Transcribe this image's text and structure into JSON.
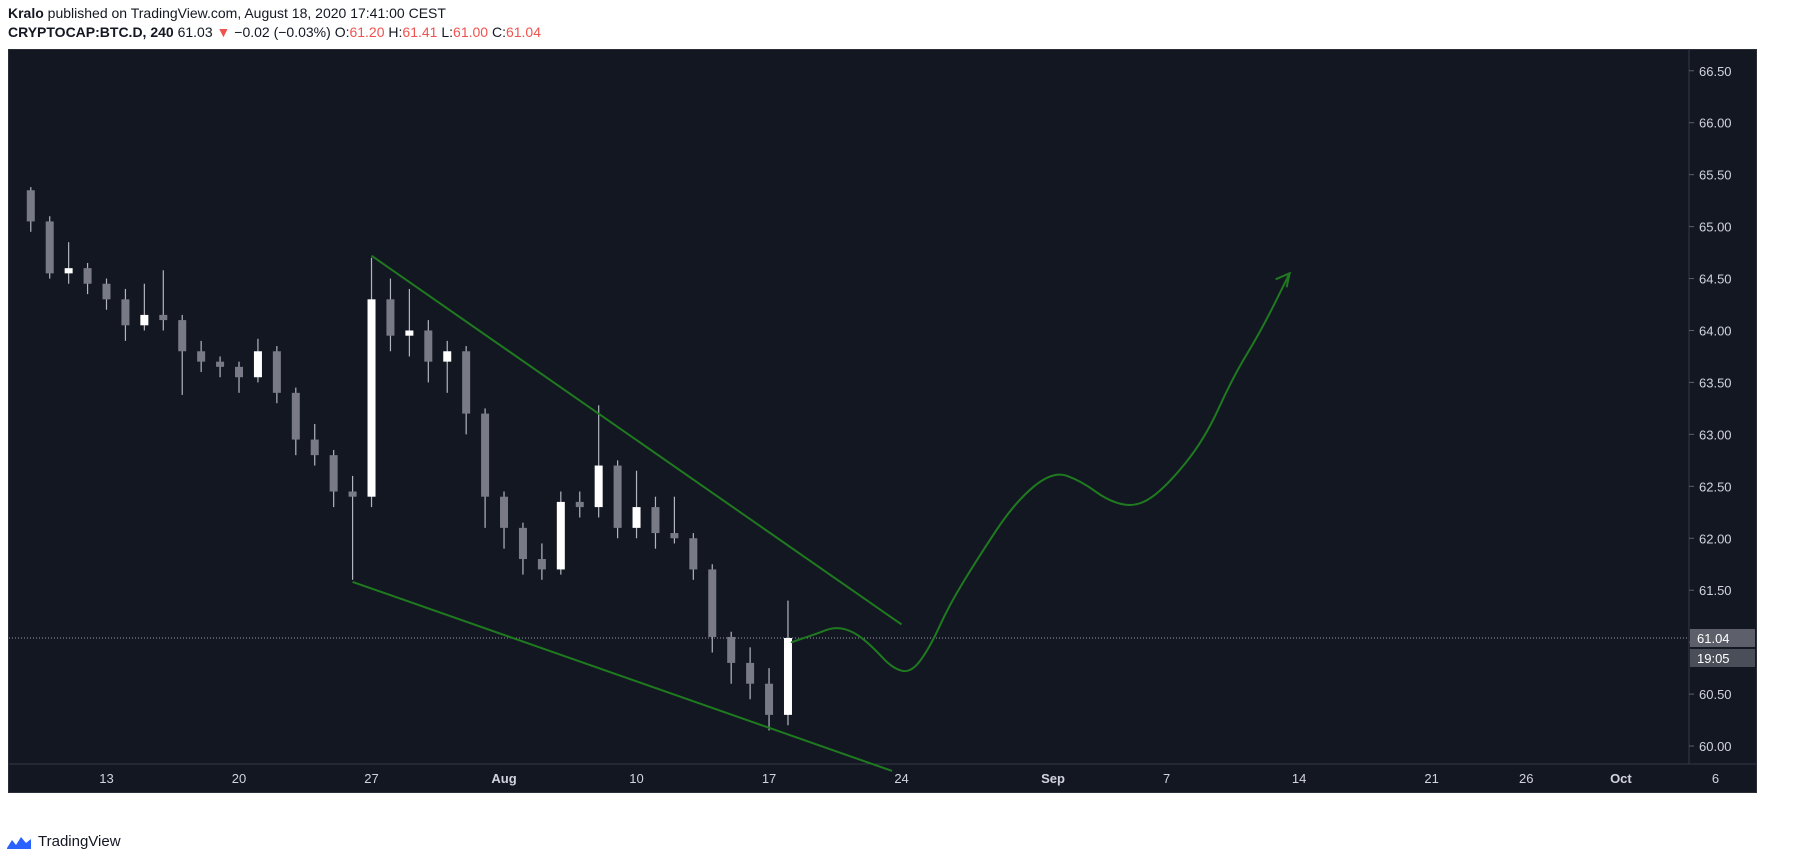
{
  "header": {
    "author": "Kralo",
    "published": " published on TradingView.com, August 18, 2020 17:41:00 CEST",
    "symbol": "CRYPTOCAP:BTC.D, 240",
    "last": "61.03",
    "change": "−0.02 (−0.03%)",
    "o_label": "O:",
    "o_value": "61.20",
    "h_label": "H:",
    "h_value": "61.41",
    "l_label": "L:",
    "l_value": "61.00",
    "c_label": "C:",
    "c_value": "61.04"
  },
  "footer": {
    "brand": "TradingView"
  },
  "colors": {
    "background": "#131722",
    "candle": "#ffffff",
    "wick": "#b2b5be",
    "trendline": "#1f7a1f",
    "down": "#ef5350",
    "axis_text": "#d1d4dc"
  },
  "chart_data": {
    "type": "candlestick",
    "y_ticks": [
      "66.50",
      "66.00",
      "65.50",
      "65.00",
      "64.50",
      "64.00",
      "63.50",
      "63.00",
      "62.50",
      "62.00",
      "61.50",
      "61.00",
      "60.50",
      "60.00"
    ],
    "x_ticks": [
      "13",
      "20",
      "27",
      "Aug",
      "10",
      "17",
      "24",
      "Sep",
      "7",
      "14",
      "21",
      "26",
      "Oct",
      "6"
    ],
    "last_price_label": "61.04",
    "countdown_label": "19:05",
    "last_price": 61.04,
    "series": [
      {
        "x": "Jul 9",
        "o": 65.35,
        "h": 65.38,
        "l": 64.95,
        "c": 65.05
      },
      {
        "x": "Jul 10",
        "o": 65.05,
        "h": 65.1,
        "l": 64.5,
        "c": 64.55
      },
      {
        "x": "Jul 11",
        "o": 64.55,
        "h": 64.85,
        "l": 64.45,
        "c": 64.6
      },
      {
        "x": "Jul 12",
        "o": 64.6,
        "h": 64.65,
        "l": 64.35,
        "c": 64.45
      },
      {
        "x": "Jul 13",
        "o": 64.45,
        "h": 64.5,
        "l": 64.2,
        "c": 64.3
      },
      {
        "x": "Jul 14",
        "o": 64.3,
        "h": 64.4,
        "l": 63.9,
        "c": 64.05
      },
      {
        "x": "Jul 15",
        "o": 64.05,
        "h": 64.45,
        "l": 64.0,
        "c": 64.15
      },
      {
        "x": "Jul 16",
        "o": 64.15,
        "h": 64.58,
        "l": 64.0,
        "c": 64.1
      },
      {
        "x": "Jul 17",
        "o": 64.1,
        "h": 64.15,
        "l": 63.38,
        "c": 63.8
      },
      {
        "x": "Jul 18",
        "o": 63.8,
        "h": 63.9,
        "l": 63.6,
        "c": 63.7
      },
      {
        "x": "Jul 19",
        "o": 63.7,
        "h": 63.75,
        "l": 63.55,
        "c": 63.65
      },
      {
        "x": "Jul 20",
        "o": 63.65,
        "h": 63.7,
        "l": 63.4,
        "c": 63.55
      },
      {
        "x": "Jul 21",
        "o": 63.55,
        "h": 63.92,
        "l": 63.5,
        "c": 63.8
      },
      {
        "x": "Jul 22",
        "o": 63.8,
        "h": 63.85,
        "l": 63.3,
        "c": 63.4
      },
      {
        "x": "Jul 23",
        "o": 63.4,
        "h": 63.45,
        "l": 62.8,
        "c": 62.95
      },
      {
        "x": "Jul 24",
        "o": 62.95,
        "h": 63.1,
        "l": 62.7,
        "c": 62.8
      },
      {
        "x": "Jul 25",
        "o": 62.8,
        "h": 62.85,
        "l": 62.3,
        "c": 62.45
      },
      {
        "x": "Jul 26",
        "o": 62.45,
        "h": 62.6,
        "l": 61.6,
        "c": 62.4
      },
      {
        "x": "Jul 27",
        "o": 62.4,
        "h": 64.7,
        "l": 62.3,
        "c": 64.3
      },
      {
        "x": "Jul 28",
        "o": 64.3,
        "h": 64.5,
        "l": 63.8,
        "c": 63.95
      },
      {
        "x": "Jul 29",
        "o": 63.95,
        "h": 64.4,
        "l": 63.75,
        "c": 64.0
      },
      {
        "x": "Jul 30",
        "o": 64.0,
        "h": 64.1,
        "l": 63.5,
        "c": 63.7
      },
      {
        "x": "Jul 31",
        "o": 63.7,
        "h": 63.9,
        "l": 63.4,
        "c": 63.8
      },
      {
        "x": "Aug 1",
        "o": 63.8,
        "h": 63.85,
        "l": 63.0,
        "c": 63.2
      },
      {
        "x": "Aug 2",
        "o": 63.2,
        "h": 63.25,
        "l": 62.1,
        "c": 62.4
      },
      {
        "x": "Aug 3",
        "o": 62.4,
        "h": 62.45,
        "l": 61.9,
        "c": 62.1
      },
      {
        "x": "Aug 4",
        "o": 62.1,
        "h": 62.15,
        "l": 61.65,
        "c": 61.8
      },
      {
        "x": "Aug 5",
        "o": 61.8,
        "h": 61.95,
        "l": 61.6,
        "c": 61.7
      },
      {
        "x": "Aug 6",
        "o": 61.7,
        "h": 62.45,
        "l": 61.65,
        "c": 62.35
      },
      {
        "x": "Aug 7",
        "o": 62.35,
        "h": 62.45,
        "l": 62.2,
        "c": 62.3
      },
      {
        "x": "Aug 8",
        "o": 62.3,
        "h": 63.28,
        "l": 62.2,
        "c": 62.7
      },
      {
        "x": "Aug 9",
        "o": 62.7,
        "h": 62.75,
        "l": 62.0,
        "c": 62.1
      },
      {
        "x": "Aug 10",
        "o": 62.1,
        "h": 62.65,
        "l": 62.0,
        "c": 62.3
      },
      {
        "x": "Aug 11",
        "o": 62.3,
        "h": 62.4,
        "l": 61.9,
        "c": 62.05
      },
      {
        "x": "Aug 12",
        "o": 62.05,
        "h": 62.4,
        "l": 61.95,
        "c": 62.0
      },
      {
        "x": "Aug 13",
        "o": 62.0,
        "h": 62.05,
        "l": 61.6,
        "c": 61.7
      },
      {
        "x": "Aug 14",
        "o": 61.7,
        "h": 61.75,
        "l": 60.9,
        "c": 61.05
      },
      {
        "x": "Aug 15",
        "o": 61.05,
        "h": 61.1,
        "l": 60.6,
        "c": 60.8
      },
      {
        "x": "Aug 16",
        "o": 60.8,
        "h": 60.95,
        "l": 60.45,
        "c": 60.6
      },
      {
        "x": "Aug 17",
        "o": 60.6,
        "h": 60.75,
        "l": 60.15,
        "c": 60.3
      },
      {
        "x": "Aug 18",
        "o": 60.3,
        "h": 61.4,
        "l": 60.2,
        "c": 61.04
      }
    ],
    "drawings": {
      "upper_trendline": [
        [
          "Jul 27",
          64.72
        ],
        [
          "Aug 24",
          61.17
        ]
      ],
      "lower_trendline": [
        [
          "Jul 26",
          61.58
        ],
        [
          "Aug 23.5",
          59.76
        ]
      ],
      "projection_path": [
        [
          "Aug 18.2",
          61.0
        ],
        [
          "Aug 19.5",
          61.08
        ],
        [
          "Aug 20.5",
          61.15
        ],
        [
          "Aug 21.5",
          61.1
        ],
        [
          "Aug 22.5",
          60.95
        ],
        [
          "Aug 23.5",
          60.75
        ],
        [
          "Aug 24.5",
          60.7
        ],
        [
          "Aug 25.5",
          60.95
        ],
        [
          "Aug 26.5",
          61.35
        ],
        [
          "Aug 28",
          61.8
        ],
        [
          "Aug 30",
          62.35
        ],
        [
          "Sep 1",
          62.65
        ],
        [
          "Sep 2.5",
          62.55
        ],
        [
          "Sep 4",
          62.35
        ],
        [
          "Sep 5.5",
          62.3
        ],
        [
          "Sep 7",
          62.5
        ],
        [
          "Sep 9",
          62.95
        ],
        [
          "Sep 10.5",
          63.55
        ],
        [
          "Sep 12",
          64.0
        ],
        [
          "Sep 13.5",
          64.55
        ]
      ]
    }
  }
}
